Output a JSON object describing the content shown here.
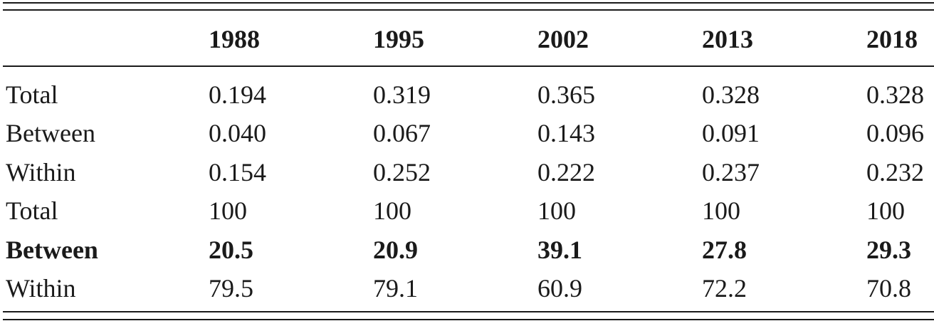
{
  "table": {
    "header": [
      "1988",
      "1995",
      "2002",
      "2013",
      "2018"
    ],
    "rows": [
      [
        "Total",
        "0.194",
        "0.319",
        "0.365",
        "0.328",
        "0.328"
      ],
      [
        "Between",
        "0.040",
        "0.067",
        "0.143",
        "0.091",
        "0.096"
      ],
      [
        "Within",
        "0.154",
        "0.252",
        "0.222",
        "0.237",
        "0.232"
      ],
      [
        "Total",
        "100",
        "100",
        "100",
        "100",
        "100"
      ],
      [
        "Between",
        "20.5",
        "20.9",
        "39.1",
        "27.8",
        "29.3"
      ],
      [
        "Within",
        "79.5",
        "79.1",
        "60.9",
        "72.2",
        "70.8"
      ]
    ]
  }
}
